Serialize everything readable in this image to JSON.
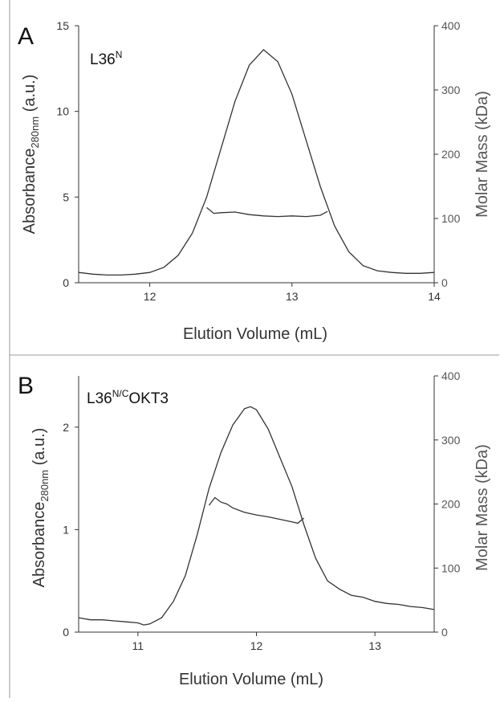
{
  "chart_data": [
    {
      "type": "line",
      "panel_letter": "A",
      "sample_label": {
        "base": "L36",
        "sup": "N",
        "rest": ""
      },
      "xlabel": "Elution Volume (mL)",
      "ylabel": {
        "base": "Absorbance",
        "sub": "280nm",
        "rest": " (a.u.)"
      },
      "y2label": "Molar Mass (kDa)",
      "xlim": [
        11.5,
        14
      ],
      "ylim": [
        0,
        15
      ],
      "y2lim": [
        0,
        400
      ],
      "xticks": [
        12,
        13,
        14
      ],
      "yticks": [
        0,
        5,
        10,
        15
      ],
      "y2ticks": [
        0,
        100,
        200,
        300,
        400
      ],
      "series": [
        {
          "axis": "left",
          "x": [
            11.5,
            11.6,
            11.7,
            11.8,
            11.9,
            12.0,
            12.1,
            12.2,
            12.3,
            12.4,
            12.5,
            12.6,
            12.7,
            12.8,
            12.9,
            13.0,
            13.1,
            13.2,
            13.3,
            13.4,
            13.5,
            13.6,
            13.7,
            13.8,
            13.9,
            14.0
          ],
          "y": [
            0.6,
            0.5,
            0.45,
            0.45,
            0.5,
            0.6,
            0.9,
            1.6,
            2.9,
            5.0,
            7.8,
            10.6,
            12.7,
            13.6,
            12.9,
            11.0,
            8.3,
            5.6,
            3.3,
            1.8,
            1.0,
            0.7,
            0.6,
            0.55,
            0.55,
            0.6
          ]
        },
        {
          "axis": "right",
          "x": [
            12.4,
            12.45,
            12.5,
            12.6,
            12.7,
            12.8,
            12.9,
            13.0,
            13.1,
            13.2,
            13.25
          ],
          "y": [
            117,
            108,
            109,
            110,
            106,
            104,
            103,
            104,
            103,
            105,
            111
          ]
        }
      ]
    },
    {
      "type": "line",
      "panel_letter": "B",
      "sample_label": {
        "base": "L36",
        "sup": "N/C",
        "rest": "OKT3"
      },
      "xlabel": "Elution Volume (mL)",
      "ylabel": {
        "base": "Absorbance",
        "sub": "280nm",
        "rest": " (a.u.)"
      },
      "y2label": "Molar Mass (kDa)",
      "xlim": [
        10.5,
        13.5
      ],
      "ylim": [
        0,
        2.5
      ],
      "y2lim": [
        0,
        400
      ],
      "xticks": [
        11,
        12,
        13
      ],
      "yticks": [
        0,
        1,
        2
      ],
      "y2ticks": [
        0,
        100,
        200,
        300,
        400
      ],
      "series": [
        {
          "axis": "left",
          "x": [
            10.5,
            10.6,
            10.7,
            10.8,
            10.9,
            11.0,
            11.05,
            11.1,
            11.2,
            11.3,
            11.4,
            11.5,
            11.6,
            11.7,
            11.8,
            11.9,
            11.95,
            12.0,
            12.1,
            12.2,
            12.3,
            12.4,
            12.5,
            12.6,
            12.7,
            12.8,
            12.9,
            13.0,
            13.1,
            13.2,
            13.3,
            13.4,
            13.5
          ],
          "y": [
            0.14,
            0.12,
            0.12,
            0.11,
            0.1,
            0.09,
            0.07,
            0.08,
            0.14,
            0.3,
            0.55,
            0.95,
            1.4,
            1.75,
            2.02,
            2.18,
            2.2,
            2.17,
            1.98,
            1.7,
            1.42,
            1.05,
            0.72,
            0.5,
            0.42,
            0.36,
            0.34,
            0.3,
            0.28,
            0.27,
            0.25,
            0.24,
            0.22
          ]
        },
        {
          "axis": "right",
          "x": [
            11.6,
            11.65,
            11.7,
            11.75,
            11.8,
            11.9,
            12.0,
            12.1,
            12.2,
            12.3,
            12.35,
            12.4
          ],
          "y": [
            198,
            210,
            203,
            200,
            194,
            187,
            183,
            180,
            176,
            172,
            170,
            178
          ]
        }
      ]
    }
  ]
}
